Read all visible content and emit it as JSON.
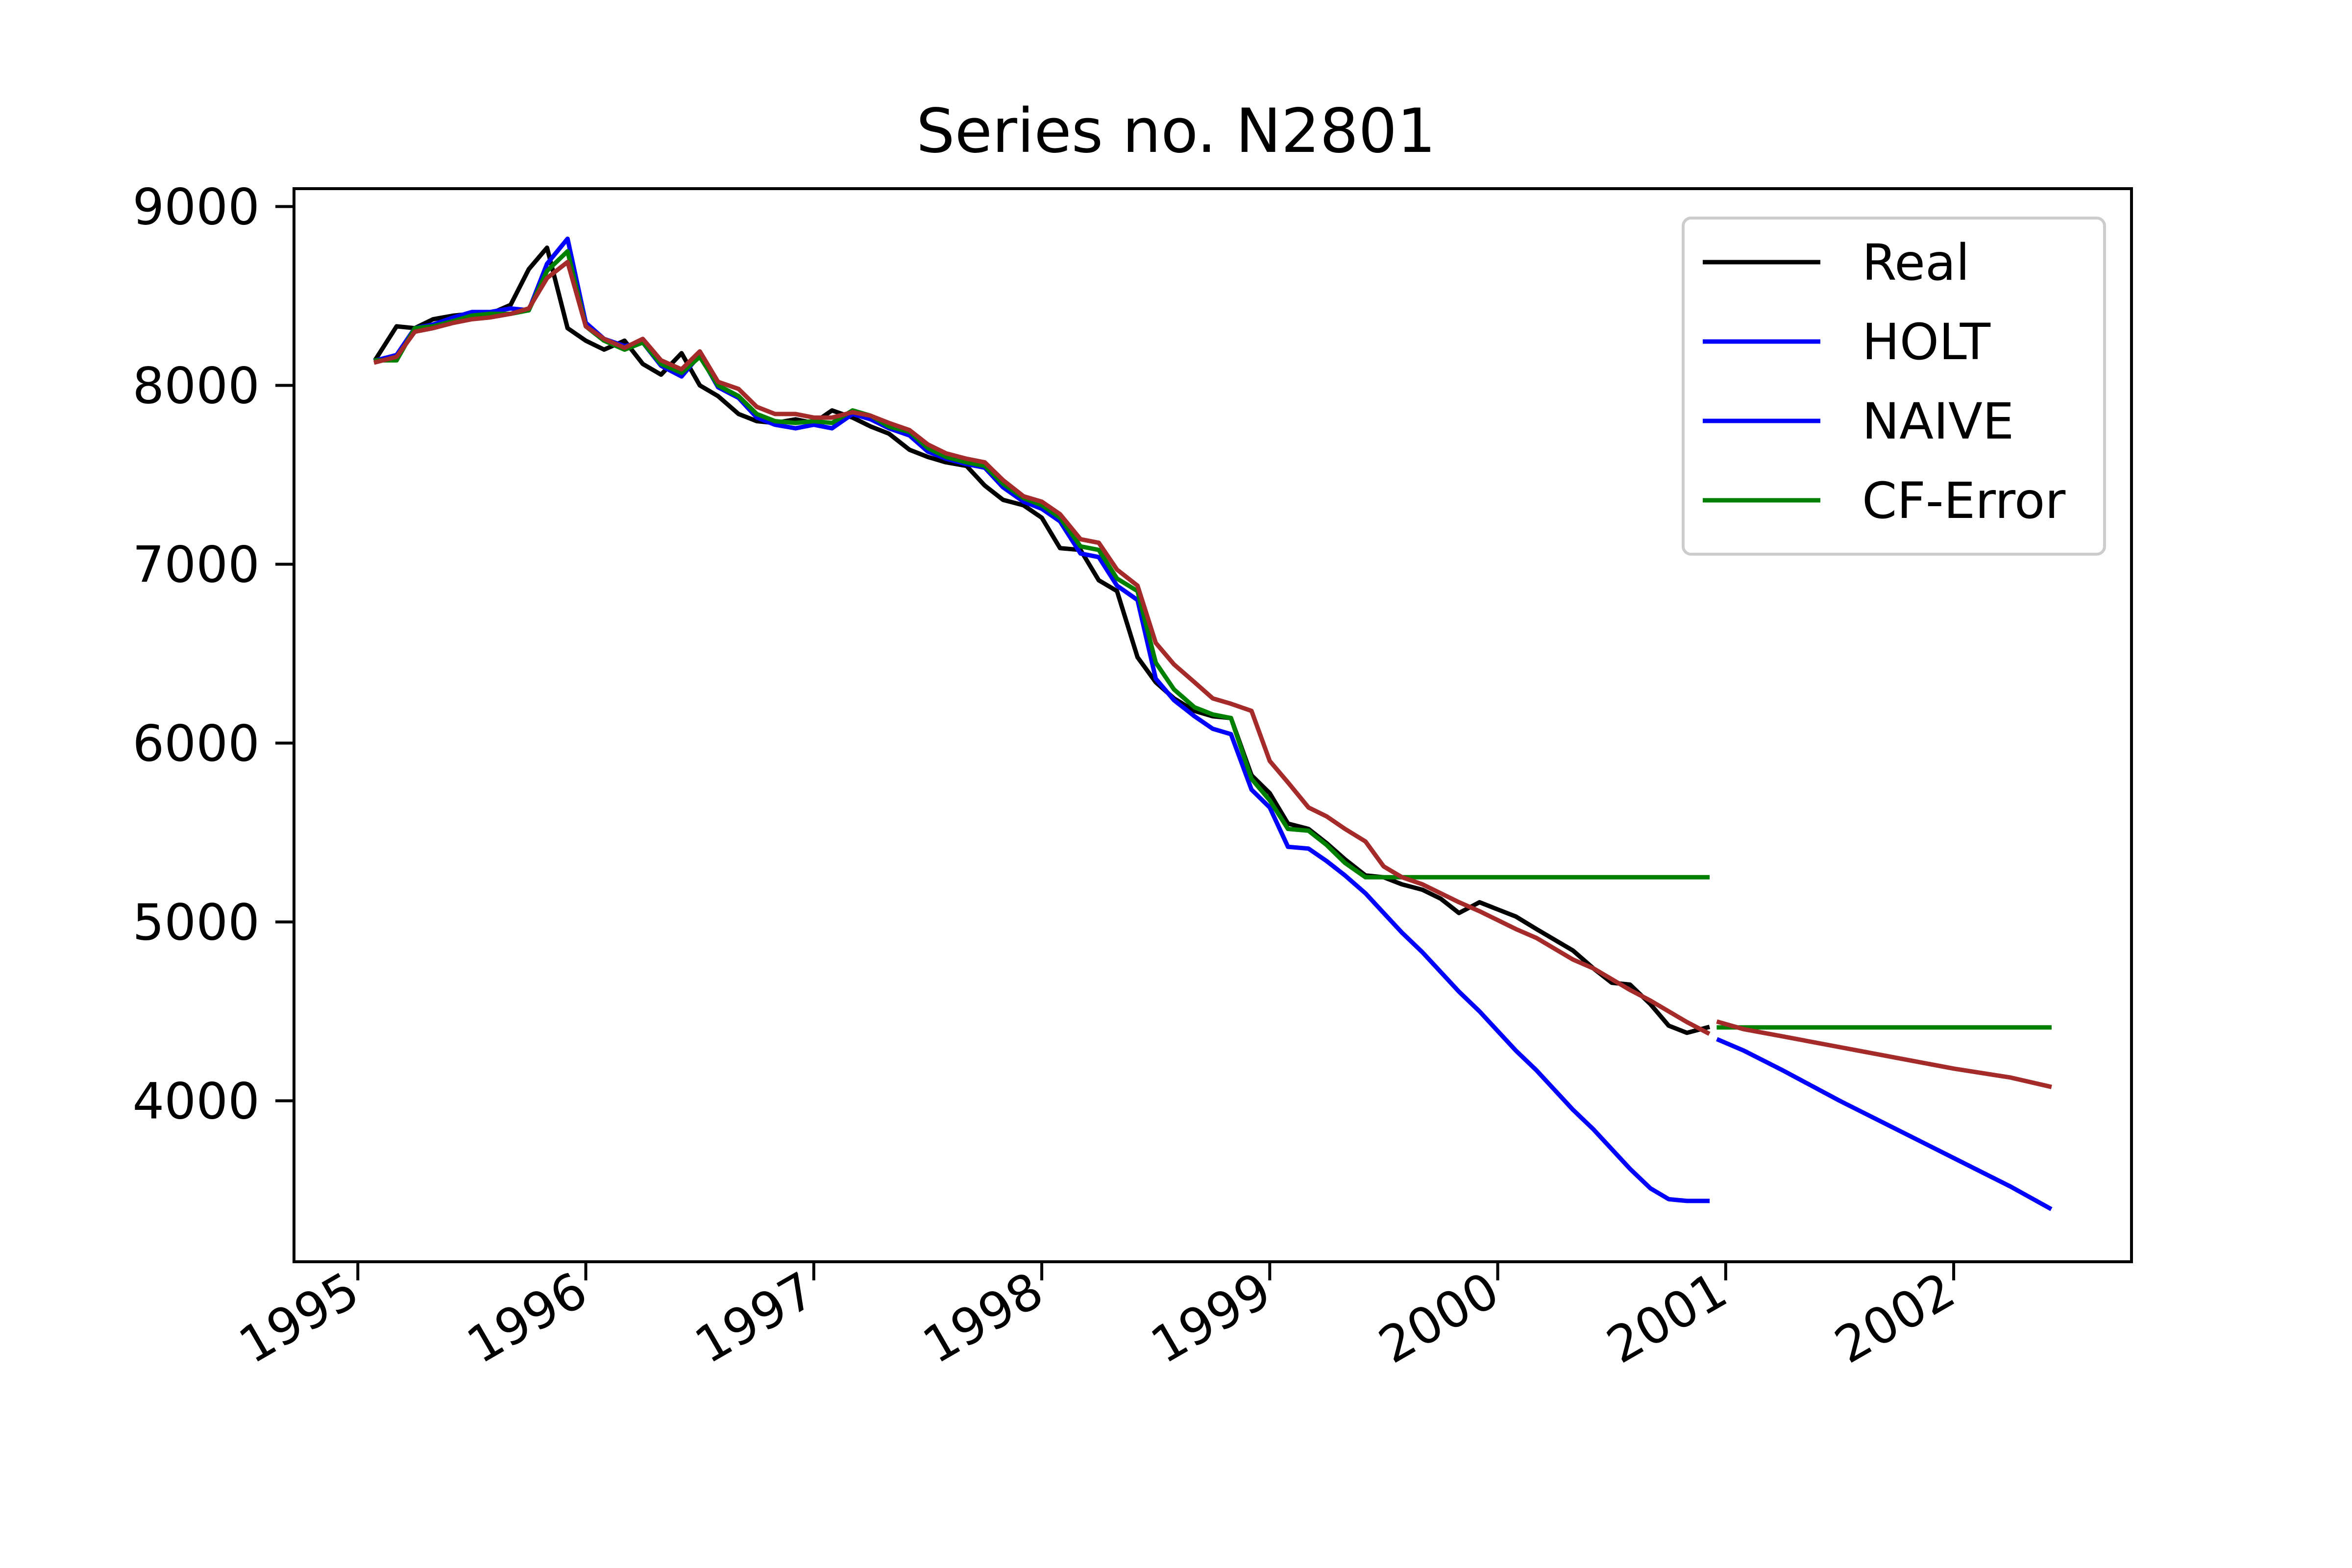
{
  "chart_data": {
    "type": "line",
    "title": "Series no. N2801",
    "xlabel": "",
    "ylabel": "",
    "xlim": [
      1994.72,
      2002.78
    ],
    "ylim": [
      3100,
      9100
    ],
    "x_ticks": [
      1995,
      1996,
      1997,
      1998,
      1999,
      2000,
      2001,
      2002
    ],
    "x_tick_labels": [
      "1995",
      "1996",
      "1997",
      "1998",
      "1999",
      "2000",
      "2001",
      "2002"
    ],
    "y_ticks": [
      4000,
      5000,
      6000,
      7000,
      8000,
      9000
    ],
    "y_tick_labels": [
      "4000",
      "5000",
      "6000",
      "7000",
      "8000",
      "9000"
    ],
    "grid": false,
    "legend_position": "top-right",
    "legend": [
      "Real",
      "HOLT",
      "NAIVE",
      "CF-Error"
    ],
    "series": [
      {
        "name": "Real",
        "color": "#000000",
        "x": [
          1995.08,
          1995.17,
          1995.25,
          1995.33,
          1995.42,
          1995.5,
          1995.58,
          1995.67,
          1995.75,
          1995.83,
          1995.92,
          1996.0,
          1996.08,
          1996.17,
          1996.25,
          1996.33,
          1996.42,
          1996.5,
          1996.58,
          1996.67,
          1996.75,
          1996.83,
          1996.92,
          1997.0,
          1997.08,
          1997.17,
          1997.25,
          1997.33,
          1997.42,
          1997.5,
          1997.58,
          1997.67,
          1997.75,
          1997.83,
          1997.92,
          1998.0,
          1998.08,
          1998.17,
          1998.25,
          1998.33,
          1998.42,
          1998.5,
          1998.58,
          1998.67,
          1998.75,
          1998.83,
          1998.92,
          1999.0,
          1999.08,
          1999.17,
          1999.25,
          1999.33,
          1999.42,
          1999.5,
          1999.58,
          1999.67,
          1999.75,
          1999.83,
          1999.92,
          2000.0,
          2000.08,
          2000.17,
          2000.25,
          2000.33,
          2000.42,
          2000.5,
          2000.58,
          2000.67,
          2000.75,
          2000.83,
          2000.92
        ],
        "y": [
          8150,
          8330,
          8320,
          8370,
          8390,
          8400,
          8400,
          8450,
          8650,
          8770,
          8320,
          8250,
          8200,
          8250,
          8120,
          8060,
          8180,
          8000,
          7940,
          7840,
          7800,
          7790,
          7810,
          7790,
          7860,
          7820,
          7770,
          7730,
          7640,
          7600,
          7570,
          7550,
          7440,
          7360,
          7330,
          7260,
          7090,
          7080,
          6910,
          6850,
          6480,
          6340,
          6250,
          6180,
          6150,
          6140,
          5820,
          5720,
          5550,
          5520,
          5440,
          5350,
          5260,
          5250,
          5210,
          5180,
          5130,
          5050,
          5110,
          5070,
          5030,
          4960,
          4900,
          4840,
          4740,
          4660,
          4650,
          4540,
          4420,
          4380,
          4410
        ]
      },
      {
        "name": "HOLT",
        "color": "#0000ff",
        "segments": [
          {
            "x": [
              1995.08,
              1995.17,
              1995.25,
              1995.33,
              1995.42,
              1995.5,
              1995.58,
              1995.67,
              1995.75,
              1995.83,
              1995.92,
              1996.0,
              1996.08,
              1996.17,
              1996.25,
              1996.33,
              1996.42,
              1996.5,
              1996.58,
              1996.67,
              1996.75,
              1996.83,
              1996.92,
              1997.0,
              1997.08,
              1997.17,
              1997.25,
              1997.33,
              1997.42,
              1997.5,
              1997.58,
              1997.67,
              1997.75,
              1997.83,
              1997.92,
              1998.0,
              1998.08,
              1998.17,
              1998.25,
              1998.33,
              1998.42,
              1998.5,
              1998.58,
              1998.67,
              1998.75,
              1998.83,
              1998.92,
              1999.0,
              1999.08,
              1999.17,
              1999.25,
              1999.33,
              1999.42,
              1999.5,
              1999.58,
              1999.67,
              1999.75,
              1999.83,
              1999.92,
              2000.0,
              2000.08,
              2000.17,
              2000.25,
              2000.33,
              2000.42,
              2000.5,
              2000.58,
              2000.67,
              2000.75,
              2000.83,
              2000.92
            ],
            "y": [
              8140,
              8170,
              8320,
              8340,
              8380,
              8410,
              8410,
              8430,
              8420,
              8680,
              8820,
              8350,
              8260,
              8220,
              8240,
              8110,
              8050,
              8170,
              7990,
              7930,
              7820,
              7780,
              7760,
              7780,
              7760,
              7840,
              7810,
              7760,
              7720,
              7630,
              7590,
              7560,
              7540,
              7430,
              7350,
              7310,
              7240,
              7060,
              7040,
              6880,
              6800,
              6360,
              6240,
              6150,
              6080,
              6050,
              5740,
              5640,
              5420,
              5410,
              5340,
              5260,
              5160,
              5050,
              4940,
              4830,
              4720,
              4610,
              4500,
              4390,
              4280,
              4170,
              4060,
              3950,
              3840,
              3730,
              3620,
              3510,
              3450,
              3440,
              3440
            ]
          },
          {
            "x": [
              2000.97,
              2001.08,
              2001.25,
              2001.5,
              2001.75,
              2002.0,
              2002.25,
              2002.42
            ],
            "y": [
              4340,
              4280,
              4170,
              4000,
              3840,
              3680,
              3520,
              3400
            ]
          }
        ]
      },
      {
        "name": "NAIVE",
        "color": "#0000ff",
        "x": [],
        "y": []
      },
      {
        "name": "CF-Error",
        "color": "#008000",
        "segments": [
          {
            "x": [
              1995.08,
              1995.17,
              1995.25,
              1995.33,
              1995.42,
              1995.5,
              1995.58,
              1995.67,
              1995.75,
              1995.83,
              1995.92,
              1996.0,
              1996.08,
              1996.17,
              1996.25,
              1996.33,
              1996.42,
              1996.5,
              1996.58,
              1996.67,
              1996.75,
              1996.83,
              1996.92,
              1997.0,
              1997.08,
              1997.17,
              1997.25,
              1997.33,
              1997.42,
              1997.5,
              1997.58,
              1997.67,
              1997.75,
              1997.83,
              1997.92,
              1998.0,
              1998.08,
              1998.17,
              1998.25,
              1998.33,
              1998.42,
              1998.5,
              1998.58,
              1998.67,
              1998.75,
              1998.83,
              1998.92,
              1999.0,
              1999.08,
              1999.17,
              1999.25,
              1999.33,
              1999.42,
              1999.5,
              1999.58,
              1999.67,
              1999.75,
              1999.83,
              1999.92,
              2000.0,
              2000.08,
              2000.17,
              2000.25,
              2000.33,
              2000.42,
              2000.5,
              2000.58,
              2000.67,
              2000.75,
              2000.83,
              2000.92
            ],
            "y": [
              8140,
              8140,
              8320,
              8330,
              8360,
              8390,
              8400,
              8400,
              8420,
              8640,
              8750,
              8330,
              8250,
              8200,
              8240,
              8120,
              8070,
              8160,
              8000,
              7940,
              7840,
              7800,
              7790,
              7800,
              7790,
              7860,
              7830,
              7770,
              7740,
              7650,
              7600,
              7570,
              7550,
              7450,
              7370,
              7330,
              7260,
              7100,
              7080,
              6920,
              6850,
              6450,
              6300,
              6200,
              6160,
              6140,
              5800,
              5680,
              5520,
              5510,
              5430,
              5330,
              5250,
              5250,
              5250,
              5250,
              5250,
              5250,
              5250,
              5250,
              5250,
              5250,
              5250,
              5250,
              5250,
              5250,
              5250,
              5250,
              5250,
              5250,
              5250
            ]
          },
          {
            "x": [
              2000.97,
              2001.25,
              2001.5,
              2001.75,
              2002.0,
              2002.25,
              2002.42
            ],
            "y": [
              4410,
              4410,
              4410,
              4410,
              4410,
              4410,
              4410
            ]
          }
        ]
      },
      {
        "name": "",
        "color": "#a52a2a",
        "segments": [
          {
            "x": [
              1995.08,
              1995.17,
              1995.25,
              1995.33,
              1995.42,
              1995.5,
              1995.58,
              1995.67,
              1995.75,
              1995.83,
              1995.92,
              1996.0,
              1996.08,
              1996.17,
              1996.25,
              1996.33,
              1996.42,
              1996.5,
              1996.58,
              1996.67,
              1996.75,
              1996.83,
              1996.92,
              1997.0,
              1997.08,
              1997.17,
              1997.25,
              1997.33,
              1997.42,
              1997.5,
              1997.58,
              1997.67,
              1997.75,
              1997.83,
              1997.92,
              1998.0,
              1998.08,
              1998.17,
              1998.25,
              1998.33,
              1998.42,
              1998.5,
              1998.58,
              1998.67,
              1998.75,
              1998.83,
              1998.92,
              1999.0,
              1999.08,
              1999.17,
              1999.25,
              1999.33,
              1999.42,
              1999.5,
              1999.58,
              1999.67,
              1999.75,
              1999.83,
              1999.92,
              2000.0,
              2000.08,
              2000.17,
              2000.25,
              2000.33,
              2000.42,
              2000.5,
              2000.58,
              2000.67,
              2000.75,
              2000.83,
              2000.92
            ],
            "y": [
              8130,
              8160,
              8300,
              8320,
              8350,
              8370,
              8380,
              8400,
              8430,
              8600,
              8690,
              8330,
              8260,
              8210,
              8260,
              8140,
              8090,
              8190,
              8020,
              7980,
              7880,
              7840,
              7840,
              7820,
              7820,
              7850,
              7830,
              7790,
              7750,
              7670,
              7620,
              7590,
              7570,
              7470,
              7380,
              7350,
              7280,
              7140,
              7120,
              6970,
              6880,
              6560,
              6440,
              6340,
              6250,
              6220,
              6180,
              5900,
              5780,
              5640,
              5590,
              5520,
              5450,
              5310,
              5250,
              5210,
              5160,
              5110,
              5060,
              5010,
              4960,
              4910,
              4850,
              4790,
              4740,
              4680,
              4620,
              4560,
              4500,
              4440,
              4380
            ]
          },
          {
            "x": [
              2000.97,
              2001.08,
              2001.25,
              2001.5,
              2001.75,
              2002.0,
              2002.25,
              2002.42
            ],
            "y": [
              4440,
              4400,
              4360,
              4300,
              4240,
              4180,
              4130,
              4080
            ]
          }
        ]
      }
    ]
  }
}
